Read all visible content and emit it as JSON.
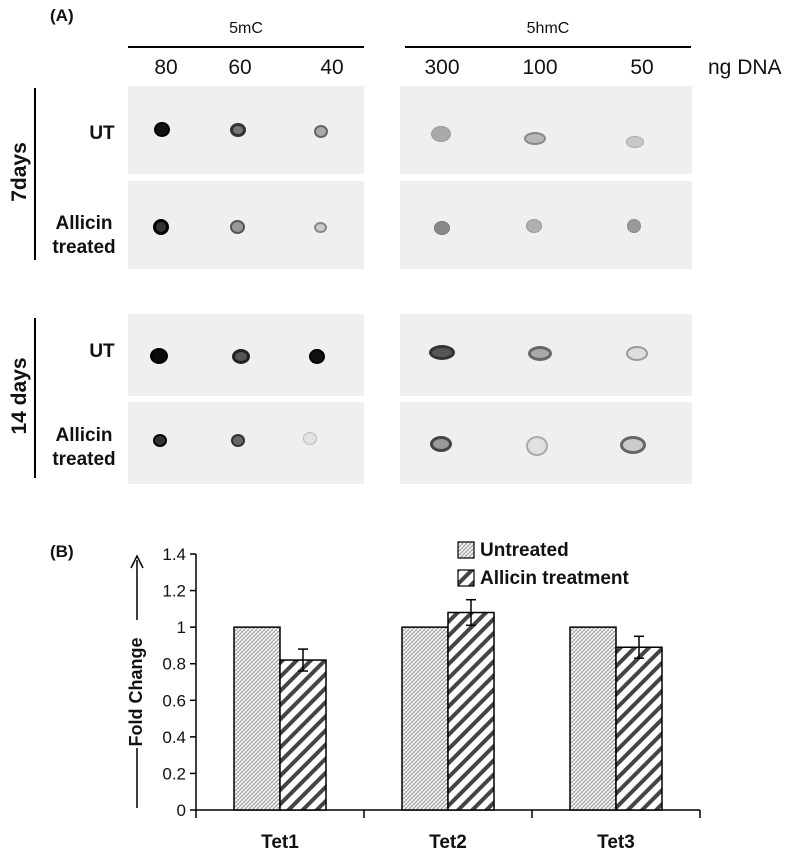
{
  "panel_a": {
    "label": "(A)",
    "groups": [
      {
        "name": "5mC",
        "concentrations": [
          "80",
          "60",
          "40"
        ]
      },
      {
        "name": "5hmC",
        "concentrations": [
          "300",
          "100",
          "50"
        ]
      }
    ],
    "unit": "ng DNA",
    "time_points": [
      {
        "label": "7days",
        "rows": [
          "UT",
          "Allicin treated"
        ]
      },
      {
        "label": "14 days",
        "rows": [
          "UT",
          "Allicin treated"
        ]
      }
    ],
    "row_label_lines": {
      "ut": "UT",
      "treated_line1": "Allicin",
      "treated_line2": "treated"
    }
  },
  "panel_b": {
    "label": "(B)"
  },
  "chart_data": {
    "type": "bar",
    "categories": [
      "Tet1",
      "Tet2",
      "Tet3"
    ],
    "series": [
      {
        "name": "Untreated",
        "values": [
          1.0,
          1.0,
          1.0
        ],
        "errors": [
          0,
          0,
          0
        ]
      },
      {
        "name": "Allicin treatment",
        "values": [
          0.82,
          1.08,
          0.89
        ],
        "errors": [
          0.06,
          0.07,
          0.06
        ]
      }
    ],
    "ylabel": "Fold Change",
    "ylim": [
      0,
      1.4
    ],
    "yticks": [
      "0",
      "0.2",
      "0.4",
      "0.6",
      "0.8",
      "1",
      "1.2",
      "1.4"
    ],
    "grid": false,
    "legend_position": "top-right",
    "colors": {
      "bar_edge": "#000000",
      "background": "#ffffff"
    }
  }
}
